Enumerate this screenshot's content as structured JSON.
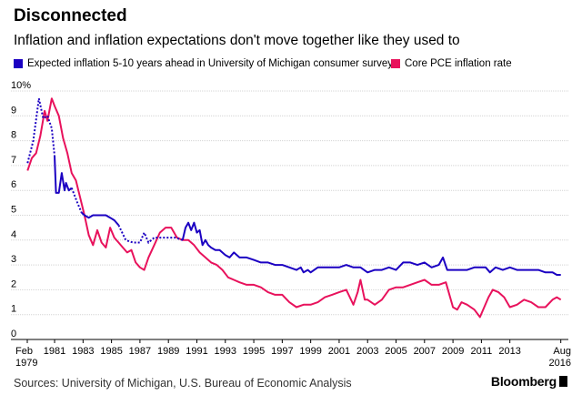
{
  "header": {
    "title": "Disconnected",
    "subtitle": "Inflation and inflation expectations don't move together like they used to"
  },
  "footer": {
    "source": "Sources: University of Michigan, U.S. Bureau of Economic Analysis",
    "logo": "Bloomberg"
  },
  "chart_data": {
    "type": "line",
    "title": "Disconnected",
    "subtitle": "Inflation and inflation expectations don't move together like they used to",
    "x_range": [
      1979.08,
      2016.6
    ],
    "ylim": [
      0,
      10
    ],
    "y_ticks": [
      {
        "value": 0,
        "label": "0"
      },
      {
        "value": 1,
        "label": "1"
      },
      {
        "value": 2,
        "label": "2"
      },
      {
        "value": 3,
        "label": "3"
      },
      {
        "value": 4,
        "label": "4"
      },
      {
        "value": 5,
        "label": "5"
      },
      {
        "value": 6,
        "label": "6"
      },
      {
        "value": 7,
        "label": "7"
      },
      {
        "value": 8,
        "label": "8"
      },
      {
        "value": 9,
        "label": "9"
      },
      {
        "value": 10,
        "label": "10%"
      }
    ],
    "x_ticks": [
      {
        "value": 1979.08,
        "line1": "Feb",
        "line2": "1979"
      },
      {
        "value": 1981,
        "line1": "1981",
        "line2": ""
      },
      {
        "value": 1983,
        "line1": "1983",
        "line2": ""
      },
      {
        "value": 1985,
        "line1": "1985",
        "line2": ""
      },
      {
        "value": 1987,
        "line1": "1987",
        "line2": ""
      },
      {
        "value": 1989,
        "line1": "1989",
        "line2": ""
      },
      {
        "value": 1991,
        "line1": "1991",
        "line2": ""
      },
      {
        "value": 1993,
        "line1": "1993",
        "line2": ""
      },
      {
        "value": 1995,
        "line1": "1995",
        "line2": ""
      },
      {
        "value": 1997,
        "line1": "1997",
        "line2": ""
      },
      {
        "value": 1999,
        "line1": "1999",
        "line2": ""
      },
      {
        "value": 2001,
        "line1": "2001",
        "line2": ""
      },
      {
        "value": 2003,
        "line1": "2003",
        "line2": ""
      },
      {
        "value": 2005,
        "line1": "2005",
        "line2": ""
      },
      {
        "value": 2007,
        "line1": "2007",
        "line2": ""
      },
      {
        "value": 2009,
        "line1": "2009",
        "line2": ""
      },
      {
        "value": 2011,
        "line1": "2011",
        "line2": ""
      },
      {
        "value": 2013,
        "line1": "2013",
        "line2": ""
      },
      {
        "value": 2016.58,
        "line1": "Aug",
        "line2": "2016"
      }
    ],
    "grid": "horizontal",
    "legend_position": "top",
    "series": [
      {
        "name": "Expected inflation 5-10 years ahead in University of Michigan consumer survey",
        "color": "#1b00c2",
        "gap_segments_dotted": [
          {
            "x": [
              1979.1,
              1979.5,
              1979.9,
              1980.2,
              1980.5,
              1980.8,
              1981.0
            ],
            "y": [
              7.1,
              8.0,
              9.7,
              8.9,
              9.0,
              8.5,
              7.4
            ]
          },
          {
            "x": [
              1982.2,
              1982.6,
              1982.9
            ],
            "y": [
              6.1,
              5.5,
              5.1
            ]
          },
          {
            "x": [
              1985.5,
              1986.0,
              1986.5,
              1987.0,
              1987.3,
              1987.6,
              1988.0,
              1988.5,
              1989.0,
              1989.5,
              1990.0
            ],
            "y": [
              4.6,
              4.0,
              3.9,
              3.9,
              4.3,
              3.9,
              4.1,
              4.1,
              4.1,
              4.1,
              4.0
            ]
          }
        ],
        "x": [
          1981.0,
          1981.1,
          1981.3,
          1981.5,
          1981.7,
          1981.8,
          1982.0,
          1982.2,
          1982.9,
          1983.1,
          1983.4,
          1983.7,
          1984.0,
          1984.3,
          1984.6,
          1984.9,
          1985.2,
          1985.5,
          1990.0,
          1990.2,
          1990.4,
          1990.6,
          1990.8,
          1991.0,
          1991.2,
          1991.4,
          1991.6,
          1991.8,
          1992.0,
          1992.3,
          1992.6,
          1993.0,
          1993.3,
          1993.6,
          1994.0,
          1994.5,
          1995.0,
          1995.5,
          1996.0,
          1996.5,
          1997.0,
          1997.5,
          1998.0,
          1998.3,
          1998.5,
          1998.8,
          1999.0,
          1999.5,
          2000.0,
          2000.5,
          2001.0,
          2001.5,
          2002.0,
          2002.5,
          2003.0,
          2003.5,
          2004.0,
          2004.5,
          2005.0,
          2005.5,
          2006.0,
          2006.5,
          2007.0,
          2007.5,
          2008.0,
          2008.3,
          2008.6,
          2009.0,
          2009.5,
          2010.0,
          2010.5,
          2011.0,
          2011.3,
          2011.6,
          2012.0,
          2012.5,
          2013.0,
          2013.5,
          2014.0,
          2014.5,
          2015.0,
          2015.5,
          2016.0,
          2016.3,
          2016.58
        ],
        "y": [
          7.4,
          5.9,
          5.9,
          6.7,
          6.0,
          6.3,
          6.0,
          6.1,
          5.1,
          5.0,
          4.9,
          5.0,
          5.0,
          5.0,
          5.0,
          4.9,
          4.8,
          4.6,
          4.0,
          4.5,
          4.7,
          4.4,
          4.7,
          4.3,
          4.4,
          3.8,
          4.0,
          3.8,
          3.7,
          3.6,
          3.6,
          3.4,
          3.3,
          3.5,
          3.3,
          3.3,
          3.2,
          3.1,
          3.1,
          3.0,
          3.0,
          2.9,
          2.8,
          2.9,
          2.7,
          2.8,
          2.7,
          2.9,
          2.9,
          2.9,
          2.9,
          3.0,
          2.9,
          2.9,
          2.7,
          2.8,
          2.8,
          2.9,
          2.8,
          3.1,
          3.1,
          3.0,
          3.1,
          2.9,
          3.0,
          3.3,
          2.8,
          2.8,
          2.8,
          2.8,
          2.9,
          2.9,
          2.9,
          2.7,
          2.9,
          2.8,
          2.9,
          2.8,
          2.8,
          2.8,
          2.8,
          2.7,
          2.7,
          2.6,
          2.6
        ]
      },
      {
        "name": "Core PCE inflation rate",
        "color": "#e8125c",
        "x": [
          1979.1,
          1979.4,
          1979.7,
          1980.0,
          1980.3,
          1980.5,
          1980.8,
          1981.0,
          1981.3,
          1981.6,
          1981.9,
          1982.2,
          1982.5,
          1982.8,
          1983.1,
          1983.4,
          1983.7,
          1984.0,
          1984.3,
          1984.6,
          1984.9,
          1985.2,
          1985.5,
          1985.8,
          1986.1,
          1986.4,
          1986.7,
          1987.0,
          1987.3,
          1987.6,
          1988.0,
          1988.4,
          1988.8,
          1989.2,
          1989.6,
          1990.0,
          1990.4,
          1990.8,
          1991.2,
          1991.6,
          1992.0,
          1992.4,
          1992.8,
          1993.2,
          1993.6,
          1994.0,
          1994.5,
          1995.0,
          1995.5,
          1996.0,
          1996.5,
          1997.0,
          1997.5,
          1998.0,
          1998.5,
          1999.0,
          1999.5,
          2000.0,
          2000.5,
          2001.0,
          2001.5,
          2002.0,
          2002.3,
          2002.5,
          2002.8,
          2003.0,
          2003.5,
          2004.0,
          2004.5,
          2005.0,
          2005.5,
          2006.0,
          2006.5,
          2007.0,
          2007.5,
          2008.0,
          2008.5,
          2009.0,
          2009.3,
          2009.6,
          2010.0,
          2010.5,
          2010.9,
          2011.2,
          2011.5,
          2011.8,
          2012.2,
          2012.6,
          2013.0,
          2013.5,
          2014.0,
          2014.5,
          2015.0,
          2015.5,
          2016.0,
          2016.3,
          2016.58
        ],
        "y": [
          6.8,
          7.3,
          7.5,
          8.2,
          9.2,
          8.8,
          9.7,
          9.4,
          9.0,
          8.1,
          7.5,
          6.7,
          6.4,
          5.7,
          5.0,
          4.2,
          3.8,
          4.4,
          3.9,
          3.7,
          4.5,
          4.1,
          3.9,
          3.7,
          3.5,
          3.6,
          3.1,
          2.9,
          2.8,
          3.3,
          3.8,
          4.3,
          4.5,
          4.5,
          4.1,
          4.0,
          4.0,
          3.8,
          3.5,
          3.3,
          3.1,
          3.0,
          2.8,
          2.5,
          2.4,
          2.3,
          2.2,
          2.2,
          2.1,
          1.9,
          1.8,
          1.8,
          1.5,
          1.3,
          1.4,
          1.4,
          1.5,
          1.7,
          1.8,
          1.9,
          2.0,
          1.4,
          1.9,
          2.4,
          1.6,
          1.6,
          1.4,
          1.6,
          2.0,
          2.1,
          2.1,
          2.2,
          2.3,
          2.4,
          2.2,
          2.2,
          2.3,
          1.3,
          1.2,
          1.5,
          1.4,
          1.2,
          0.9,
          1.3,
          1.7,
          2.0,
          1.9,
          1.7,
          1.3,
          1.4,
          1.6,
          1.5,
          1.3,
          1.3,
          1.6,
          1.7,
          1.6
        ]
      }
    ]
  }
}
